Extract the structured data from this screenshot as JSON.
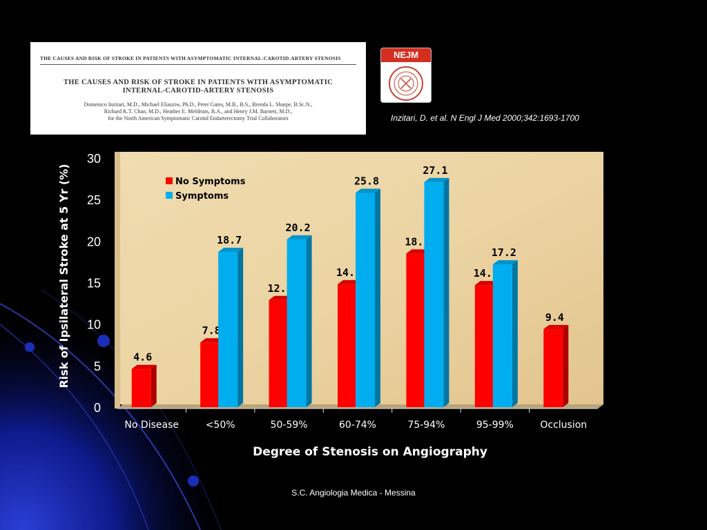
{
  "paper": {
    "running_title": "THE CAUSES AND RISK OF STROKE IN PATIENTS WITH ASYMPTOMATIC INTERNAL-CAROTID-ARTERY STENOSIS",
    "title_line1": "THE CAUSES AND RISK OF STROKE IN PATIENTS WITH ASYMPTOMATIC",
    "title_line2": "INTERNAL-CAROTID-ARTERY STENOSIS",
    "authors_line1": "Domenico Inzitari, M.D., Michael Eliasziw, Ph.D., Peter Gates, M.B., B.S., Brenda L. Sharpe, B.Sc.N.,",
    "authors_line2": "Richard K.T. Chan, M.D., Heather E. Meldrum, B.A., and Henry J.M. Barnett, M.D.,",
    "authors_line3": "for the North American Symptomatic Carotid Endarterectomy Trial Collaborators"
  },
  "logo": {
    "label": "NEJM"
  },
  "citation": "Inzitari, D. et al. N Engl J Med 2000;342:1693-1700",
  "footer": "S.C. Angiologia Medica - Messina",
  "colors": {
    "no_symptoms": "#ff0000",
    "symptoms": "#00aeef",
    "plot_background": "#ecd4a3",
    "background": "#000000"
  },
  "chart_data": {
    "type": "bar",
    "style": "3d-clustered-column",
    "xlabel": "Degree of Stenosis on Angiography",
    "ylabel": "Risk of Ipsilateral Stroke at 5 Yr (%)",
    "categories": [
      "No Disease",
      "<50%",
      "50-59%",
      "60-74%",
      "75-94%",
      "95-99%",
      "Occlusion"
    ],
    "series": [
      {
        "name": "No Symptoms",
        "values": [
          4.6,
          7.8,
          12.9,
          14.8,
          18.5,
          14.7,
          9.4
        ]
      },
      {
        "name": "Symptoms",
        "values": [
          null,
          18.7,
          20.2,
          25.8,
          27.1,
          17.2,
          null
        ]
      }
    ],
    "ylim": [
      0,
      30
    ],
    "yticks": [
      0,
      5,
      10,
      15,
      20,
      25,
      30
    ],
    "legend_position": "top-left",
    "grid": false
  }
}
